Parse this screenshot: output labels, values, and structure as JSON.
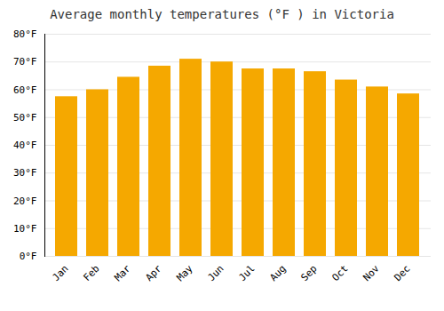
{
  "chart_data": {
    "type": "bar",
    "title": "Average monthly temperatures (°F ) in Victoria",
    "categories": [
      "Jan",
      "Feb",
      "Mar",
      "Apr",
      "May",
      "Jun",
      "Jul",
      "Aug",
      "Sep",
      "Oct",
      "Nov",
      "Dec"
    ],
    "values": [
      57.5,
      60.0,
      64.5,
      68.5,
      71.0,
      70.0,
      67.5,
      67.5,
      66.5,
      63.5,
      61.0,
      58.5
    ],
    "color": "#F5A800",
    "ylim": [
      0,
      80
    ],
    "yticks": [
      {
        "value": 0,
        "label": "0°F"
      },
      {
        "value": 10,
        "label": "10°F"
      },
      {
        "value": 20,
        "label": "20°F"
      },
      {
        "value": 30,
        "label": "30°F"
      },
      {
        "value": 40,
        "label": "40°F"
      },
      {
        "value": 50,
        "label": "50°F"
      },
      {
        "value": 60,
        "label": "60°F"
      },
      {
        "value": 70,
        "label": "70°F"
      },
      {
        "value": 80,
        "label": "80°F"
      }
    ],
    "grid": true
  }
}
